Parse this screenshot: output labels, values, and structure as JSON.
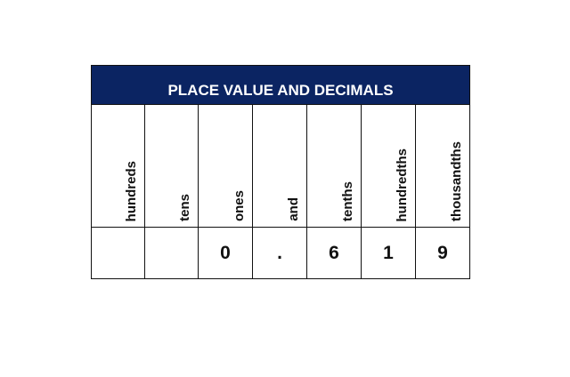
{
  "title": "PLACE VALUE AND DECIMALS",
  "columns": [
    "hundreds",
    "tens",
    "ones",
    "and",
    "tenths",
    "hundredths",
    "thousandths"
  ],
  "values": [
    "",
    "",
    "0",
    ".",
    "6",
    "1",
    "9"
  ],
  "colors": {
    "header_bg": "#0b2462",
    "header_text": "#ffffff"
  }
}
